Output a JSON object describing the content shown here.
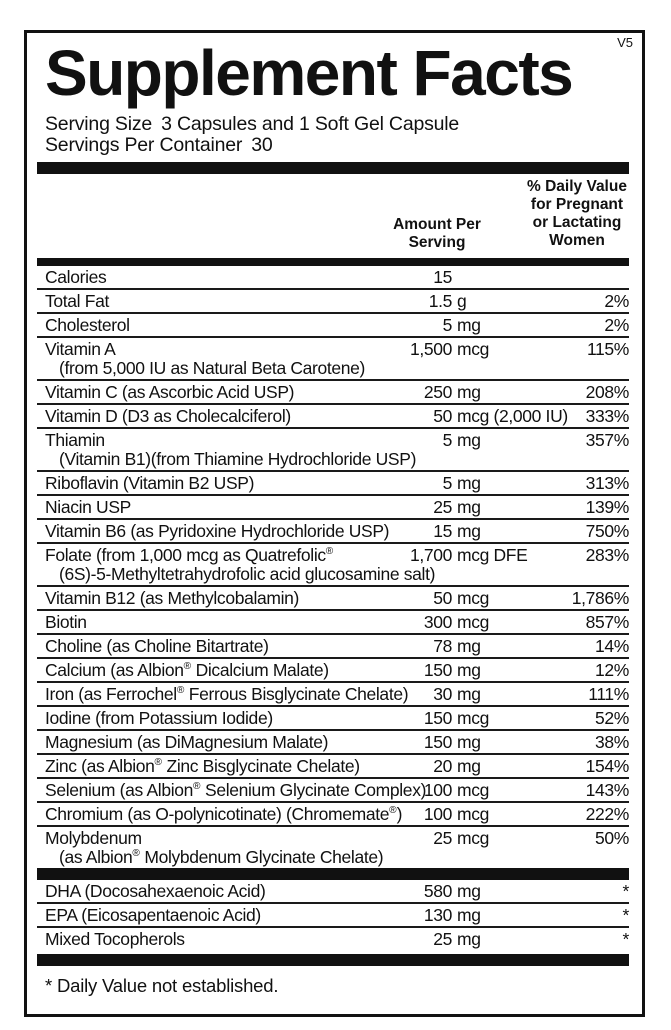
{
  "version_tag": "V5",
  "title": "Supplement Facts",
  "serving_info": {
    "serving_size_label": "Serving Size",
    "serving_size_value": "3 Capsules and 1 Soft Gel Capsule",
    "servings_per_container_label": "Servings Per Container",
    "servings_per_container_value": "30"
  },
  "colors": {
    "text": "#111111",
    "background": "#ffffff",
    "rule": "#1a1a1a"
  },
  "table": {
    "amount_header": [
      "Amount Per",
      "Serving"
    ],
    "dv_header": [
      "% Daily Value",
      "for Pregnant",
      "or Lactating",
      "Women"
    ],
    "main_rows": [
      {
        "name": "Calories",
        "amount_num": "15",
        "amount_unit": "",
        "dv": ""
      },
      {
        "name": "Total Fat",
        "amount_num": "1.5",
        "amount_unit": "g",
        "dv": "2%"
      },
      {
        "name": "Cholesterol",
        "amount_num": "5",
        "amount_unit": "mg",
        "dv": "2%"
      },
      {
        "name": "Vitamin A",
        "name2": "(from 5,000 IU as Natural Beta Carotene)",
        "amount_num": "1,500",
        "amount_unit": "mcg",
        "dv": "115%"
      },
      {
        "name": "Vitamin C (as Ascorbic Acid USP)",
        "amount_num": "250",
        "amount_unit": "mg",
        "dv": "208%"
      },
      {
        "name": "Vitamin D (D3 as Cholecalciferol)",
        "amount_num": "50",
        "amount_unit": "mcg (2,000 IU)",
        "dv": "333%"
      },
      {
        "name": "Thiamin",
        "name2": "(Vitamin B1)(from Thiamine Hydrochloride USP)",
        "amount_num": "5",
        "amount_unit": "mg",
        "dv": "357%"
      },
      {
        "name": "Riboflavin (Vitamin B2 USP)",
        "amount_num": "5",
        "amount_unit": "mg",
        "dv": "313%"
      },
      {
        "name": "Niacin USP",
        "amount_num": "25",
        "amount_unit": "mg",
        "dv": "139%"
      },
      {
        "name": "Vitamin B6 (as Pyridoxine Hydrochloride USP)",
        "amount_num": "15",
        "amount_unit": "mg",
        "dv": "750%"
      },
      {
        "name": "Folate (from 1,000 mcg as Quatrefolic®",
        "name2": "(6S)-5-Methyltetrahydrofolic acid glucosamine salt)",
        "amount_num": "1,700",
        "amount_unit": "mcg DFE",
        "dv": "283%"
      },
      {
        "name": "Vitamin B12 (as Methylcobalamin)",
        "amount_num": "50",
        "amount_unit": "mcg",
        "dv": "1,786%"
      },
      {
        "name": "Biotin",
        "amount_num": "300",
        "amount_unit": "mcg",
        "dv": "857%"
      },
      {
        "name": "Choline (as Choline Bitartrate)",
        "amount_num": "78",
        "amount_unit": "mg",
        "dv": "14%"
      },
      {
        "name": "Calcium (as Albion® Dicalcium Malate)",
        "amount_num": "150",
        "amount_unit": "mg",
        "dv": "12%"
      },
      {
        "name": "Iron (as Ferrochel® Ferrous Bisglycinate Chelate)",
        "amount_num": "30",
        "amount_unit": "mg",
        "dv": "111%"
      },
      {
        "name": "Iodine (from Potassium Iodide)",
        "amount_num": "150",
        "amount_unit": "mcg",
        "dv": "52%"
      },
      {
        "name": "Magnesium (as DiMagnesium Malate)",
        "amount_num": "150",
        "amount_unit": "mg",
        "dv": "38%"
      },
      {
        "name": "Zinc (as Albion® Zinc Bisglycinate Chelate)",
        "amount_num": "20",
        "amount_unit": "mg",
        "dv": "154%"
      },
      {
        "name": "Selenium (as Albion® Selenium Glycinate Complex)",
        "amount_num": "100",
        "amount_unit": "mcg",
        "dv": "143%"
      },
      {
        "name": "Chromium (as O-polynicotinate) (Chromemate®)",
        "amount_num": "100",
        "amount_unit": "mcg",
        "dv": "222%"
      },
      {
        "name": "Molybdenum",
        "name2": "(as Albion® Molybdenum Glycinate Chelate)",
        "amount_num": "25",
        "amount_unit": "mcg",
        "dv": "50%"
      }
    ],
    "secondary_rows": [
      {
        "name": "DHA (Docosahexaenoic Acid)",
        "amount_num": "580",
        "amount_unit": "mg",
        "dv": "*"
      },
      {
        "name": "EPA (Eicosapentaenoic Acid)",
        "amount_num": "130",
        "amount_unit": "mg",
        "dv": "*"
      },
      {
        "name": "Mixed Tocopherols",
        "amount_num": "25",
        "amount_unit": "mg",
        "dv": "*"
      }
    ]
  },
  "footnote": "* Daily Value not established."
}
